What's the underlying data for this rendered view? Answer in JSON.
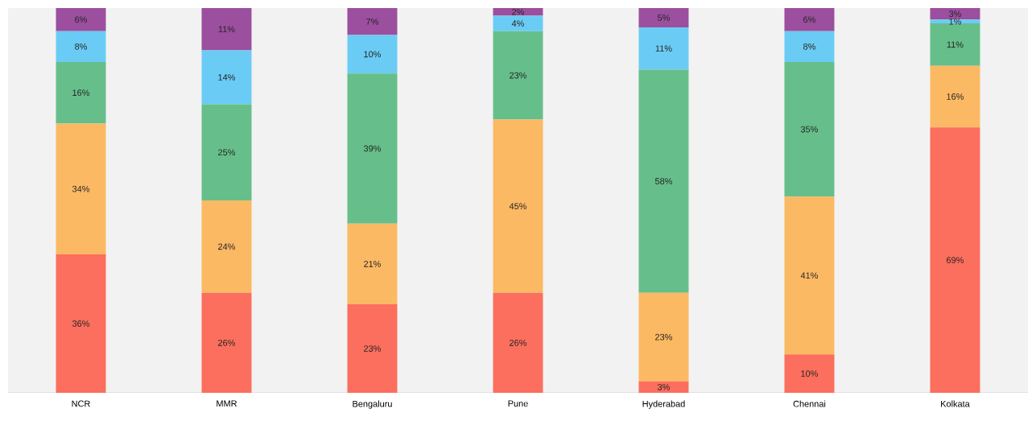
{
  "chart_data": {
    "type": "bar",
    "stacked": true,
    "categories": [
      "NCR",
      "MMR",
      "Bengaluru",
      "Pune",
      "Hyderabad",
      "Chennai",
      "Kolkata"
    ],
    "ylim": [
      0,
      100
    ],
    "tick_labels": "x",
    "series": [
      {
        "color": "#fc6e5d",
        "values": [
          36,
          26,
          23,
          26,
          3,
          10,
          69
        ],
        "value_labels": [
          "36%",
          "26%",
          "23%",
          "26%",
          "3%",
          "10%",
          "69%"
        ]
      },
      {
        "color": "#fcb963",
        "values": [
          34,
          24,
          21,
          45,
          23,
          41,
          16
        ],
        "value_labels": [
          "34%",
          "24%",
          "21%",
          "45%",
          "23%",
          "41%",
          "16%"
        ]
      },
      {
        "color": "#66bf8a",
        "values": [
          16,
          25,
          39,
          23,
          58,
          35,
          11
        ],
        "value_labels": [
          "16%",
          "25%",
          "39%",
          "23%",
          "58%",
          "35%",
          "11%"
        ]
      },
      {
        "color": "#6accf5",
        "values": [
          8,
          14,
          10,
          4,
          11,
          8,
          1
        ],
        "value_labels": [
          "8%",
          "14%",
          "10%",
          "4%",
          "11%",
          "8%",
          "1%"
        ]
      },
      {
        "color": "#9b4f9e",
        "values": [
          6,
          11,
          7,
          2,
          5,
          6,
          3
        ],
        "value_labels": [
          "6%",
          "11%",
          "7%",
          "2%",
          "5%",
          "6%",
          "3%"
        ]
      }
    ]
  }
}
